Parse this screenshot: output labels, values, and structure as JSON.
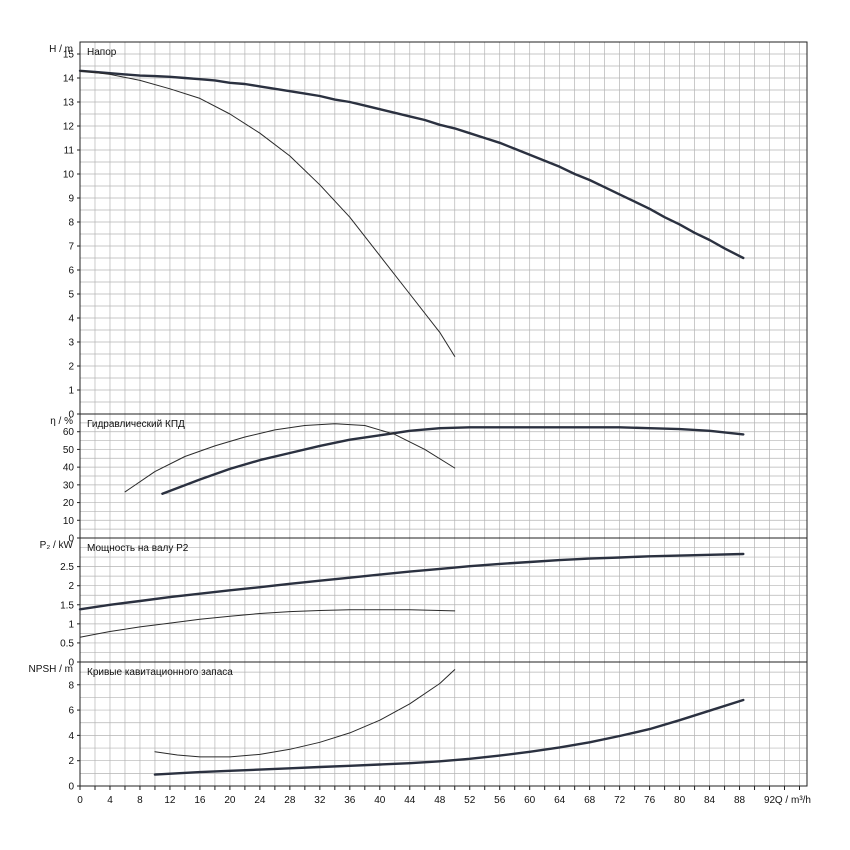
{
  "chart_data": {
    "type": "line",
    "x_axis": {
      "label": "Q / m³/h",
      "range": [
        0,
        97
      ],
      "minor_step": 2,
      "tick_labels": [
        "0",
        "4",
        "8",
        "12",
        "16",
        "20",
        "24",
        "28",
        "32",
        "36",
        "40",
        "44",
        "48",
        "52",
        "56",
        "60",
        "64",
        "68",
        "72",
        "76",
        "80",
        "84",
        "88",
        "92"
      ]
    },
    "grid": true,
    "panels": [
      {
        "key": "head",
        "title": "Напор",
        "ylabel": "H / m",
        "ylim": [
          0,
          15.5
        ],
        "grid_step": 0.5,
        "tick_labels": [
          "0",
          "1",
          "2",
          "3",
          "4",
          "5",
          "6",
          "7",
          "8",
          "9",
          "10",
          "11",
          "12",
          "13",
          "14",
          "15"
        ],
        "series": [
          {
            "x": [
              0,
              2,
              4,
              6,
              8,
              10,
              12,
              14,
              16,
              18,
              20,
              22,
              24,
              26,
              28,
              30,
              32,
              34,
              36,
              38,
              40,
              42,
              44,
              46,
              48,
              50,
              52,
              54,
              56,
              58,
              60,
              62,
              64,
              66,
              68,
              70,
              72,
              74,
              76,
              78,
              80,
              82,
              84,
              86,
              88.5
            ],
            "y": [
              14.3,
              14.25,
              14.2,
              14.15,
              14.1,
              14.08,
              14.05,
              14.0,
              13.95,
              13.9,
              13.8,
              13.75,
              13.65,
              13.55,
              13.45,
              13.35,
              13.25,
              13.1,
              13.0,
              12.85,
              12.7,
              12.55,
              12.4,
              12.25,
              12.05,
              11.9,
              11.7,
              11.5,
              11.3,
              11.05,
              10.8,
              10.55,
              10.3,
              10.0,
              9.75,
              9.45,
              9.15,
              8.85,
              8.55,
              8.2,
              7.9,
              7.55,
              7.25,
              6.9,
              6.5
            ],
            "weight": "bold"
          },
          {
            "x": [
              0,
              4,
              8,
              12,
              16,
              20,
              24,
              28,
              32,
              36,
              40,
              44,
              48,
              50
            ],
            "y": [
              14.3,
              14.15,
              13.9,
              13.55,
              13.15,
              12.5,
              11.7,
              10.75,
              9.55,
              8.2,
              6.6,
              5.0,
              3.4,
              2.4
            ],
            "weight": "thin"
          }
        ]
      },
      {
        "key": "efficiency",
        "title": "Гидравлический КПД",
        "ylabel": "η / %",
        "ylim": [
          0,
          70
        ],
        "grid_step": 5,
        "tick_labels": [
          "0",
          "10",
          "20",
          "30",
          "40",
          "50",
          "60"
        ],
        "series": [
          {
            "x": [
              11,
              16,
              20,
              24,
              28,
              32,
              36,
              40,
              44,
              48,
              52,
              56,
              60,
              64,
              68,
              72,
              76,
              80,
              84,
              88.5
            ],
            "y": [
              25,
              33,
              39,
              44,
              48,
              52,
              55.5,
              58,
              60.5,
              62,
              62.5,
              62.5,
              62.5,
              62.5,
              62.5,
              62.5,
              62,
              61.5,
              60.5,
              58.5
            ],
            "weight": "bold"
          },
          {
            "x": [
              6,
              10,
              14,
              18,
              22,
              26,
              30,
              34,
              38,
              42,
              46,
              50
            ],
            "y": [
              26,
              37.5,
              46,
              52,
              57,
              61,
              63.5,
              64.5,
              63.5,
              58.5,
              50,
              39.5
            ],
            "weight": "thin"
          }
        ]
      },
      {
        "key": "power",
        "title": "Мощность на валу P2",
        "ylabel": "P₂ / kW",
        "ylim": [
          0,
          3.25
        ],
        "grid_step": 0.25,
        "tick_labels": [
          "0",
          "0.5",
          "1",
          "1.5",
          "2",
          "2.5"
        ],
        "series": [
          {
            "x": [
              0,
              4,
              8,
              12,
              16,
              20,
              24,
              28,
              32,
              36,
              40,
              44,
              48,
              52,
              56,
              60,
              64,
              68,
              72,
              76,
              80,
              84,
              88.5
            ],
            "y": [
              1.38,
              1.5,
              1.6,
              1.7,
              1.79,
              1.88,
              1.96,
              2.05,
              2.13,
              2.21,
              2.29,
              2.37,
              2.44,
              2.51,
              2.57,
              2.62,
              2.67,
              2.71,
              2.74,
              2.77,
              2.79,
              2.81,
              2.83
            ],
            "weight": "bold"
          },
          {
            "x": [
              0,
              4,
              8,
              12,
              16,
              20,
              24,
              28,
              32,
              36,
              40,
              44,
              48,
              50
            ],
            "y": [
              0.65,
              0.8,
              0.92,
              1.02,
              1.12,
              1.2,
              1.27,
              1.32,
              1.35,
              1.37,
              1.37,
              1.37,
              1.35,
              1.34
            ],
            "weight": "thin"
          }
        ]
      },
      {
        "key": "npsh",
        "title": "Кривые кавитационного запаса",
        "ylabel": "NPSH / m",
        "ylim": [
          0,
          9.8
        ],
        "grid_step": 1,
        "tick_labels": [
          "0",
          "2",
          "4",
          "6",
          "8"
        ],
        "series": [
          {
            "x": [
              10,
              16,
              20,
              24,
              28,
              32,
              36,
              40,
              44,
              48,
              52,
              56,
              60,
              64,
              68,
              72,
              76,
              80,
              84,
              88.5
            ],
            "y": [
              0.9,
              1.1,
              1.2,
              1.3,
              1.4,
              1.5,
              1.6,
              1.7,
              1.8,
              1.95,
              2.15,
              2.4,
              2.7,
              3.05,
              3.45,
              3.95,
              4.5,
              5.2,
              5.95,
              6.8
            ],
            "weight": "bold"
          },
          {
            "x": [
              10,
              13,
              16,
              20,
              24,
              28,
              32,
              36,
              40,
              44,
              48,
              50
            ],
            "y": [
              2.7,
              2.45,
              2.3,
              2.3,
              2.5,
              2.9,
              3.45,
              4.2,
              5.2,
              6.5,
              8.1,
              9.2
            ],
            "weight": "thin"
          }
        ]
      }
    ]
  }
}
